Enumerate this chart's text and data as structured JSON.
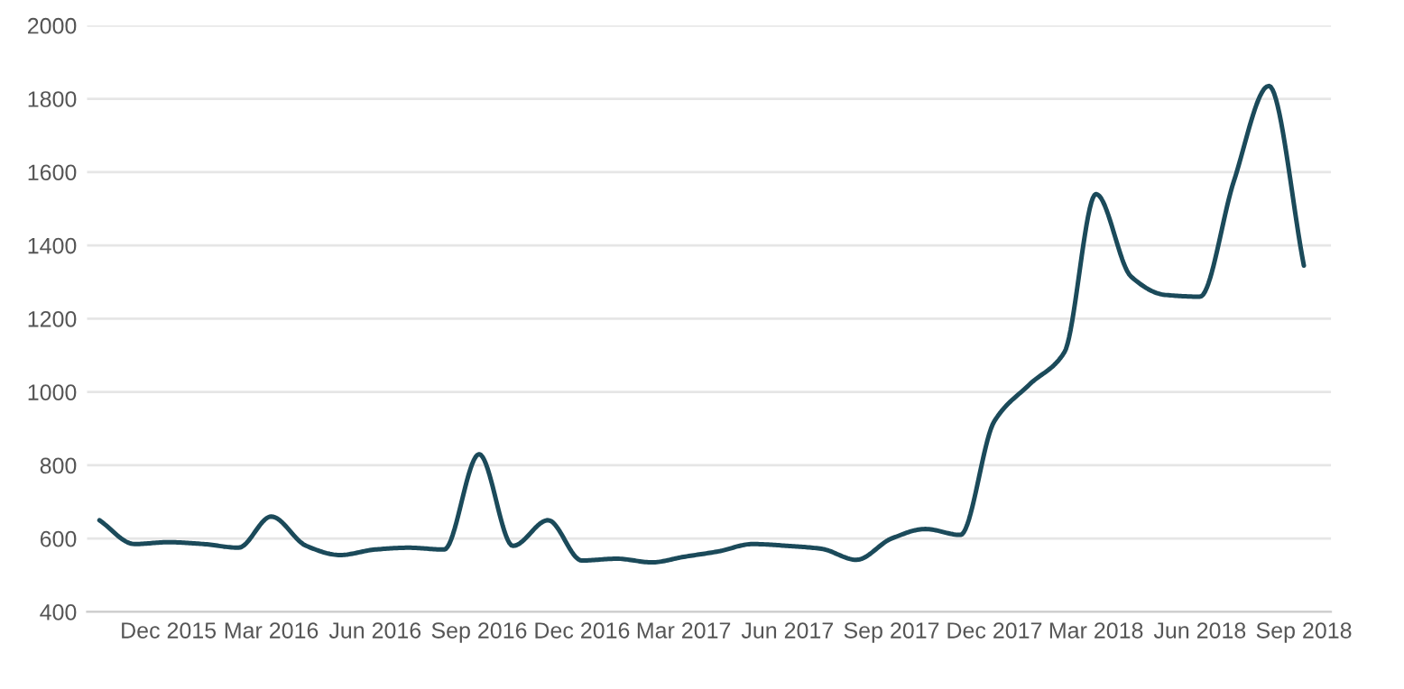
{
  "chart_data": {
    "type": "line",
    "x": [
      "2015-10",
      "2015-11",
      "2015-12",
      "2016-01",
      "2016-02",
      "2016-03",
      "2016-04",
      "2016-05",
      "2016-06",
      "2016-07",
      "2016-08",
      "2016-09",
      "2016-10",
      "2016-11",
      "2016-12",
      "2017-01",
      "2017-02",
      "2017-03",
      "2017-04",
      "2017-05",
      "2017-06",
      "2017-07",
      "2017-08",
      "2017-09",
      "2017-10",
      "2017-11",
      "2017-12",
      "2018-01",
      "2018-02",
      "2018-03",
      "2018-04",
      "2018-05",
      "2018-06",
      "2018-07",
      "2018-08",
      "2018-09"
    ],
    "series": [
      {
        "color": "#1b4a5a",
        "values": [
          650,
          585,
          590,
          585,
          575,
          660,
          580,
          555,
          570,
          575,
          570,
          830,
          580,
          650,
          540,
          545,
          535,
          550,
          565,
          585,
          580,
          572,
          542,
          600,
          626,
          610,
          920,
          1020,
          1108,
          1540,
          1315,
          1265,
          1260,
          1575,
          1835,
          1345
        ]
      }
    ],
    "ylim": [
      400,
      2000
    ],
    "yticks": [
      400,
      600,
      800,
      1000,
      1200,
      1400,
      1600,
      1800,
      2000
    ],
    "xlim": [
      "2015-09-20",
      "2018-09-25"
    ],
    "xticks": [
      {
        "value": "2015-12",
        "label": "Dec 2015"
      },
      {
        "value": "2016-03",
        "label": "Mar 2016"
      },
      {
        "value": "2016-06",
        "label": "Jun 2016"
      },
      {
        "value": "2016-09",
        "label": "Sep 2016"
      },
      {
        "value": "2016-12",
        "label": "Dec 2016"
      },
      {
        "value": "2017-03",
        "label": "Mar 2017"
      },
      {
        "value": "2017-06",
        "label": "Jun 2017"
      },
      {
        "value": "2017-09",
        "label": "Sep 2017"
      },
      {
        "value": "2017-12",
        "label": "Dec 2017"
      },
      {
        "value": "2018-03",
        "label": "Mar 2018"
      },
      {
        "value": "2018-06",
        "label": "Jun 2018"
      },
      {
        "value": "2018-09",
        "label": "Sep 2018"
      }
    ],
    "grid": "y",
    "marker": "none",
    "line_style": "solid"
  }
}
